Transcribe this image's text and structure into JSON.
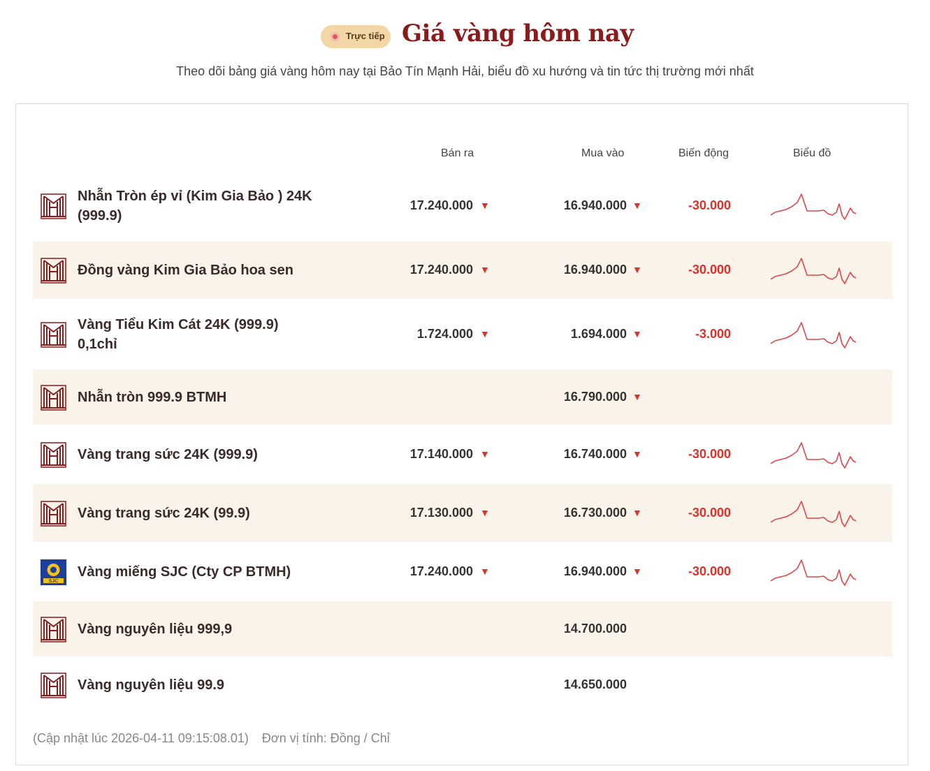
{
  "header": {
    "live_label": "Trực tiếp",
    "title": "Giá vàng hôm nay",
    "subtitle": "Theo dõi bảng giá vàng hôm nay tại Bảo Tín Mạnh Hải, biểu đồ xu hướng và tin tức thị trường mới nhất"
  },
  "table": {
    "columns": {
      "sell": "Bán ra",
      "buy": "Mua vào",
      "change": "Biến động",
      "chart": "Biểu đồ"
    },
    "rows": [
      {
        "logo": "btmh-logo",
        "name_line1": "Nhẫn Tròn ép vỉ (Kim Gia Bảo ) 24K",
        "name_line2": "(999.9)",
        "sell": "17.240.000",
        "buy": "16.940.000",
        "change": "-30.000",
        "trend": "down",
        "has_chart": true
      },
      {
        "logo": "btmh-logo",
        "name_line1": "Đồng vàng Kim Gia Bảo hoa sen",
        "name_line2": "",
        "sell": "17.240.000",
        "buy": "16.940.000",
        "change": "-30.000",
        "trend": "down",
        "has_chart": true
      },
      {
        "logo": "btmh-logo",
        "name_line1": "Vàng Tiểu Kim Cát 24K (999.9)",
        "name_line2": "0,1chỉ",
        "sell": "1.724.000",
        "buy": "1.694.000",
        "change": "-3.000",
        "trend": "down",
        "has_chart": true
      },
      {
        "logo": "btmh-logo",
        "name_line1": "Nhẫn tròn 999.9 BTMH",
        "name_line2": "",
        "sell": "",
        "buy": "16.790.000",
        "change": "",
        "trend": "down-buy-only",
        "has_chart": false
      },
      {
        "logo": "btmh-logo",
        "name_line1": "Vàng trang sức 24K (999.9)",
        "name_line2": "",
        "sell": "17.140.000",
        "buy": "16.740.000",
        "change": "-30.000",
        "trend": "down",
        "has_chart": true
      },
      {
        "logo": "btmh-logo",
        "name_line1": "Vàng trang sức 24K (99.9)",
        "name_line2": "",
        "sell": "17.130.000",
        "buy": "16.730.000",
        "change": "-30.000",
        "trend": "down",
        "has_chart": true
      },
      {
        "logo": "sjc-logo",
        "name_line1": "Vàng miếng SJC (Cty CP BTMH)",
        "name_line2": "",
        "sell": "17.240.000",
        "buy": "16.940.000",
        "change": "-30.000",
        "trend": "down",
        "has_chart": true
      },
      {
        "logo": "btmh-logo",
        "name_line1": "Vàng nguyên liệu 999,9",
        "name_line2": "",
        "sell": "",
        "buy": "14.700.000",
        "change": "",
        "trend": "none",
        "has_chart": false
      },
      {
        "logo": "btmh-logo",
        "name_line1": "Vàng nguyên liệu 99.9",
        "name_line2": "",
        "sell": "",
        "buy": "14.650.000",
        "change": "",
        "trend": "none",
        "has_chart": false
      }
    ]
  },
  "footer": {
    "updated": "(Cập nhật lúc 2026-04-11 09:15:08.01)",
    "unit": "Đơn vị tính: Đồng / Chỉ"
  },
  "colors": {
    "brand": "#8b1a1a",
    "down": "#e0302a",
    "alt_row": "#faf3ea",
    "badge": "#f2d6a6"
  }
}
